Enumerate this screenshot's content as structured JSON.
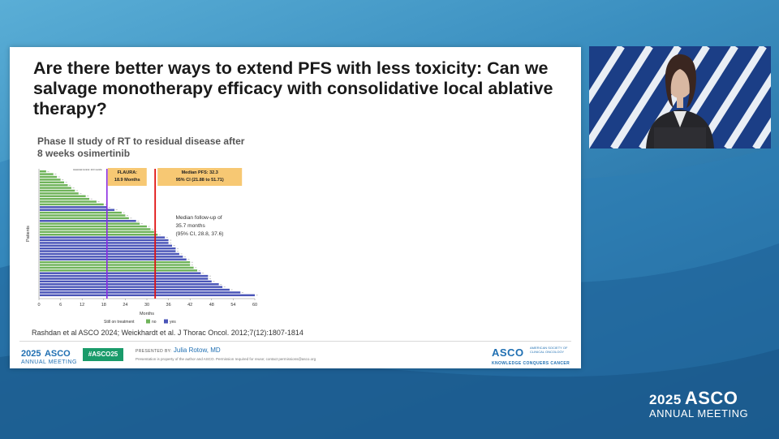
{
  "slide": {
    "title": "Are there better ways to extend PFS with less toxicity: Can we salvage monotherapy efficacy with consolidative local ablative therapy?",
    "subtitle": "Phase II study of RT to residual disease after 8 weeks osimertinib",
    "citation": "Rashdan et al ASCO 2024; Weickhardt et al. J Thorac Oncol. 2012;7(12):1807-1814",
    "footer": {
      "meeting_year": "2025",
      "meeting_name": "ASCO",
      "meeting_sub": "ANNUAL MEETING",
      "hashtag": "#ASCO25",
      "presented_by_label": "PRESENTED BY:",
      "presenter_name": "Julia Rotow, MD",
      "property_note": "Presentation is property of the author and ASCO. Permission required for reuse; contact permissions@asco.org",
      "org_logo": "ASCO",
      "org_full": "AMERICAN SOCIETY OF CLINICAL ONCOLOGY",
      "org_tagline": "KNOWLEDGE CONQUERS CANCER"
    }
  },
  "chart_data": {
    "type": "bar",
    "orientation": "horizontal",
    "xlabel": "Months",
    "ylabel": "Patients",
    "xlim": [
      0,
      60
    ],
    "x_ticks": [
      "0",
      "6",
      "12",
      "18",
      "24",
      "30",
      "36",
      "42",
      "48",
      "54",
      "60"
    ],
    "legend_title": "Still on treatment",
    "legend": [
      {
        "name": "no",
        "color": "#6fb35a"
      },
      {
        "name": "yes",
        "color": "#4a55b8"
      }
    ],
    "annotations": {
      "historical_label": "Historical Control: 10.0 months",
      "flaura_label": "FLAURA:",
      "flaura_value": "18.9 Months",
      "flaura_x": 18.9,
      "median_pfs_label": "Median PFS: 32.3",
      "median_pfs_ci": "95% CI (21.88 to 51.71)",
      "median_pfs_x": 32.3,
      "followup_line1": "Median follow-up of",
      "followup_line2": "35.7 months",
      "followup_line3": "(95% CI, 28.8, 37.6)"
    },
    "bars": [
      {
        "v": 2,
        "s": "no"
      },
      {
        "v": 4,
        "s": "no"
      },
      {
        "v": 5,
        "s": "no"
      },
      {
        "v": 6,
        "s": "no"
      },
      {
        "v": 7,
        "s": "no"
      },
      {
        "v": 8,
        "s": "no"
      },
      {
        "v": 9,
        "s": "no"
      },
      {
        "v": 10,
        "s": "no"
      },
      {
        "v": 11,
        "s": "no"
      },
      {
        "v": 13,
        "s": "no"
      },
      {
        "v": 14,
        "s": "no"
      },
      {
        "v": 16,
        "s": "no"
      },
      {
        "v": 18,
        "s": "no"
      },
      {
        "v": 19,
        "s": "yes"
      },
      {
        "v": 21,
        "s": "yes"
      },
      {
        "v": 23,
        "s": "no"
      },
      {
        "v": 24,
        "s": "no"
      },
      {
        "v": 25,
        "s": "no"
      },
      {
        "v": 27,
        "s": "yes"
      },
      {
        "v": 28,
        "s": "no"
      },
      {
        "v": 30,
        "s": "no"
      },
      {
        "v": 31,
        "s": "no"
      },
      {
        "v": 32,
        "s": "no"
      },
      {
        "v": 33,
        "s": "no"
      },
      {
        "v": 35,
        "s": "yes"
      },
      {
        "v": 36,
        "s": "yes"
      },
      {
        "v": 36,
        "s": "yes"
      },
      {
        "v": 37,
        "s": "yes"
      },
      {
        "v": 38,
        "s": "yes"
      },
      {
        "v": 38,
        "s": "yes"
      },
      {
        "v": 39,
        "s": "yes"
      },
      {
        "v": 40,
        "s": "yes"
      },
      {
        "v": 41,
        "s": "yes"
      },
      {
        "v": 42,
        "s": "no"
      },
      {
        "v": 42,
        "s": "no"
      },
      {
        "v": 43,
        "s": "no"
      },
      {
        "v": 44,
        "s": "no"
      },
      {
        "v": 45,
        "s": "yes"
      },
      {
        "v": 47,
        "s": "yes"
      },
      {
        "v": 47,
        "s": "yes"
      },
      {
        "v": 48,
        "s": "yes"
      },
      {
        "v": 50,
        "s": "yes"
      },
      {
        "v": 51,
        "s": "yes"
      },
      {
        "v": 53,
        "s": "yes"
      },
      {
        "v": 56,
        "s": "yes"
      },
      {
        "v": 60,
        "s": "yes"
      }
    ]
  },
  "overlay": {
    "brand_year": "2025",
    "brand_name": "ASCO",
    "brand_sub": "ANNUAL MEETING"
  }
}
